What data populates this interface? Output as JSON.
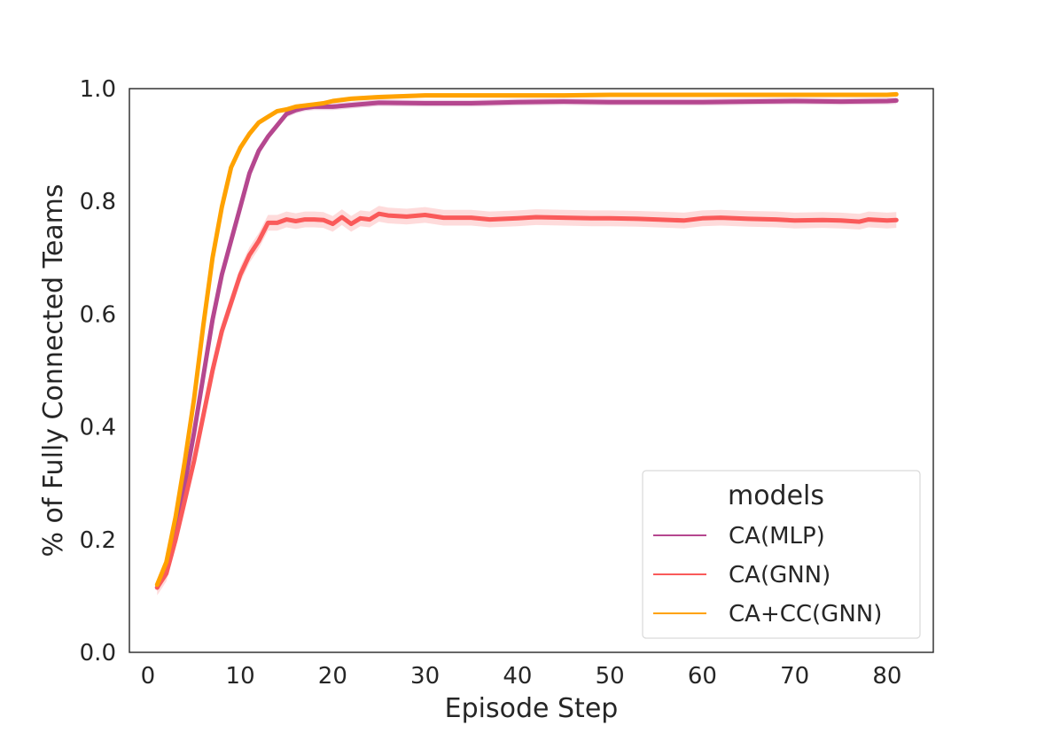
{
  "chart_data": {
    "type": "line",
    "title": "",
    "xlabel": "Episode Step",
    "ylabel": "% of Fully Connected Teams",
    "xlim": [
      -2,
      85
    ],
    "ylim": [
      0.0,
      1.0
    ],
    "xticks": [
      0,
      10,
      20,
      30,
      40,
      50,
      60,
      70,
      80
    ],
    "xtick_labels": [
      "0",
      "10",
      "20",
      "30",
      "40",
      "50",
      "60",
      "70",
      "80"
    ],
    "yticks": [
      0.0,
      0.2,
      0.4,
      0.6,
      0.8,
      1.0
    ],
    "ytick_labels": [
      "0.0",
      "0.2",
      "0.4",
      "0.6",
      "0.8",
      "1.0"
    ],
    "grid": false,
    "legend": {
      "title": "models",
      "placement": "lower-right"
    },
    "series": [
      {
        "name": "CA(MLP)",
        "color": "#b5478f",
        "band": 0.006,
        "points": [
          [
            1,
            0.115
          ],
          [
            2,
            0.15
          ],
          [
            3,
            0.22
          ],
          [
            4,
            0.3
          ],
          [
            5,
            0.39
          ],
          [
            6,
            0.49
          ],
          [
            7,
            0.59
          ],
          [
            8,
            0.67
          ],
          [
            9,
            0.73
          ],
          [
            10,
            0.79
          ],
          [
            11,
            0.85
          ],
          [
            12,
            0.89
          ],
          [
            13,
            0.915
          ],
          [
            14,
            0.935
          ],
          [
            15,
            0.955
          ],
          [
            16,
            0.962
          ],
          [
            17,
            0.966
          ],
          [
            18,
            0.968
          ],
          [
            19,
            0.968
          ],
          [
            20,
            0.968
          ],
          [
            25,
            0.975
          ],
          [
            30,
            0.974
          ],
          [
            35,
            0.974
          ],
          [
            40,
            0.976
          ],
          [
            45,
            0.977
          ],
          [
            50,
            0.976
          ],
          [
            55,
            0.976
          ],
          [
            60,
            0.976
          ],
          [
            65,
            0.977
          ],
          [
            70,
            0.978
          ],
          [
            75,
            0.977
          ],
          [
            80,
            0.978
          ],
          [
            81,
            0.979
          ]
        ]
      },
      {
        "name": "CA(GNN)",
        "color": "#fa5a5a",
        "band": 0.014,
        "points": [
          [
            1,
            0.115
          ],
          [
            2,
            0.14
          ],
          [
            3,
            0.2
          ],
          [
            4,
            0.27
          ],
          [
            5,
            0.34
          ],
          [
            6,
            0.42
          ],
          [
            7,
            0.5
          ],
          [
            8,
            0.57
          ],
          [
            9,
            0.62
          ],
          [
            10,
            0.67
          ],
          [
            11,
            0.705
          ],
          [
            12,
            0.73
          ],
          [
            13,
            0.762
          ],
          [
            14,
            0.762
          ],
          [
            15,
            0.768
          ],
          [
            16,
            0.765
          ],
          [
            17,
            0.768
          ],
          [
            18,
            0.768
          ],
          [
            19,
            0.767
          ],
          [
            20,
            0.76
          ],
          [
            21,
            0.772
          ],
          [
            22,
            0.76
          ],
          [
            23,
            0.77
          ],
          [
            24,
            0.768
          ],
          [
            25,
            0.778
          ],
          [
            26,
            0.775
          ],
          [
            28,
            0.773
          ],
          [
            30,
            0.776
          ],
          [
            32,
            0.771
          ],
          [
            35,
            0.771
          ],
          [
            37,
            0.768
          ],
          [
            40,
            0.77
          ],
          [
            42,
            0.772
          ],
          [
            45,
            0.771
          ],
          [
            48,
            0.77
          ],
          [
            50,
            0.77
          ],
          [
            53,
            0.769
          ],
          [
            55,
            0.768
          ],
          [
            58,
            0.766
          ],
          [
            60,
            0.77
          ],
          [
            62,
            0.771
          ],
          [
            65,
            0.769
          ],
          [
            68,
            0.768
          ],
          [
            70,
            0.766
          ],
          [
            73,
            0.767
          ],
          [
            75,
            0.766
          ],
          [
            77,
            0.764
          ],
          [
            78,
            0.768
          ],
          [
            80,
            0.766
          ],
          [
            81,
            0.767
          ]
        ]
      },
      {
        "name": "CA+CC(GNN)",
        "color": "#ffa200",
        "band": 0.004,
        "points": [
          [
            1,
            0.12
          ],
          [
            2,
            0.16
          ],
          [
            3,
            0.24
          ],
          [
            4,
            0.34
          ],
          [
            5,
            0.45
          ],
          [
            6,
            0.58
          ],
          [
            7,
            0.7
          ],
          [
            8,
            0.79
          ],
          [
            9,
            0.86
          ],
          [
            10,
            0.895
          ],
          [
            11,
            0.92
          ],
          [
            12,
            0.94
          ],
          [
            13,
            0.95
          ],
          [
            14,
            0.96
          ],
          [
            15,
            0.963
          ],
          [
            16,
            0.968
          ],
          [
            17,
            0.97
          ],
          [
            18,
            0.972
          ],
          [
            19,
            0.974
          ],
          [
            20,
            0.978
          ],
          [
            22,
            0.982
          ],
          [
            25,
            0.985
          ],
          [
            30,
            0.988
          ],
          [
            35,
            0.988
          ],
          [
            40,
            0.988
          ],
          [
            45,
            0.988
          ],
          [
            50,
            0.989
          ],
          [
            60,
            0.989
          ],
          [
            70,
            0.989
          ],
          [
            80,
            0.989
          ],
          [
            81,
            0.99
          ]
        ]
      }
    ]
  }
}
